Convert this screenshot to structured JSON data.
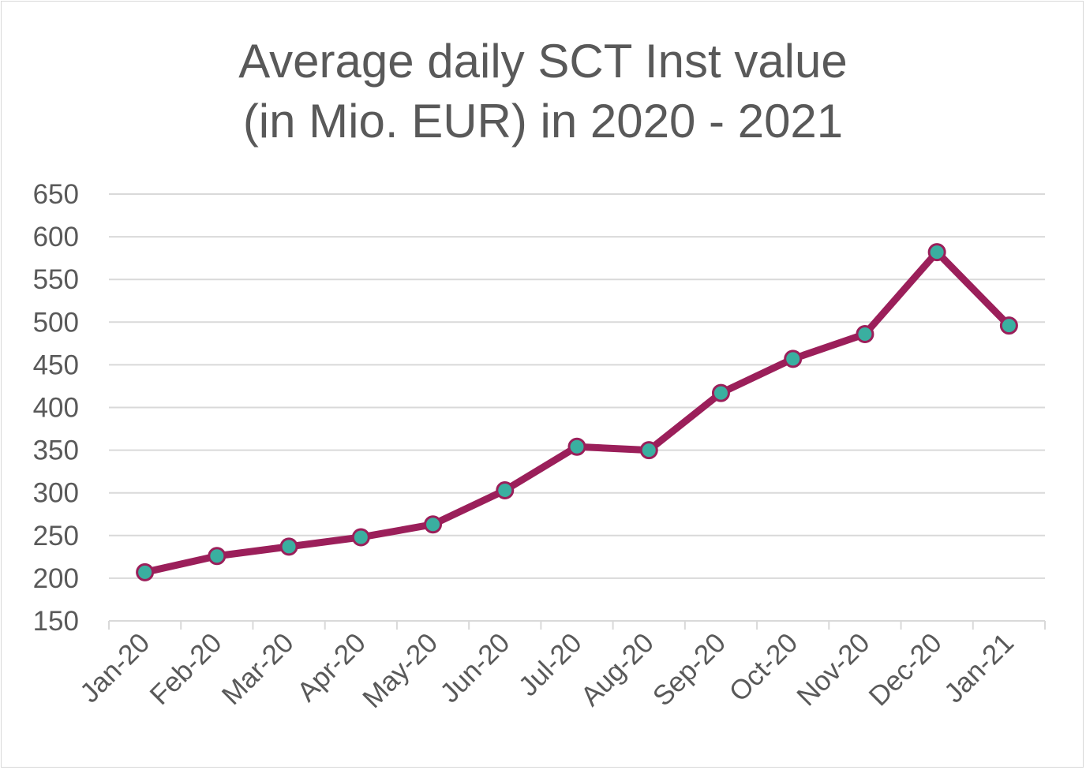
{
  "chart_data": {
    "type": "line",
    "title_line1": "Average daily SCT Inst value",
    "title_line2": "(in Mio. EUR) in 2020 - 2021",
    "categories": [
      "Jan-20",
      "Feb-20",
      "Mar-20",
      "Apr-20",
      "May-20",
      "Jun-20",
      "Jul-20",
      "Aug-20",
      "Sep-20",
      "Oct-20",
      "Nov-20",
      "Dec-20",
      "Jan-21"
    ],
    "values": [
      207,
      226,
      237,
      248,
      263,
      303,
      354,
      350,
      417,
      457,
      486,
      582,
      496
    ],
    "ylim": [
      150,
      650
    ],
    "yticks": [
      150,
      200,
      250,
      300,
      350,
      400,
      450,
      500,
      550,
      600,
      650
    ],
    "grid": true,
    "legend": "none",
    "colors": {
      "line": "#9b1f5a",
      "marker": "#3aafa0",
      "grid": "#d9d9d9",
      "text": "#595959"
    }
  }
}
